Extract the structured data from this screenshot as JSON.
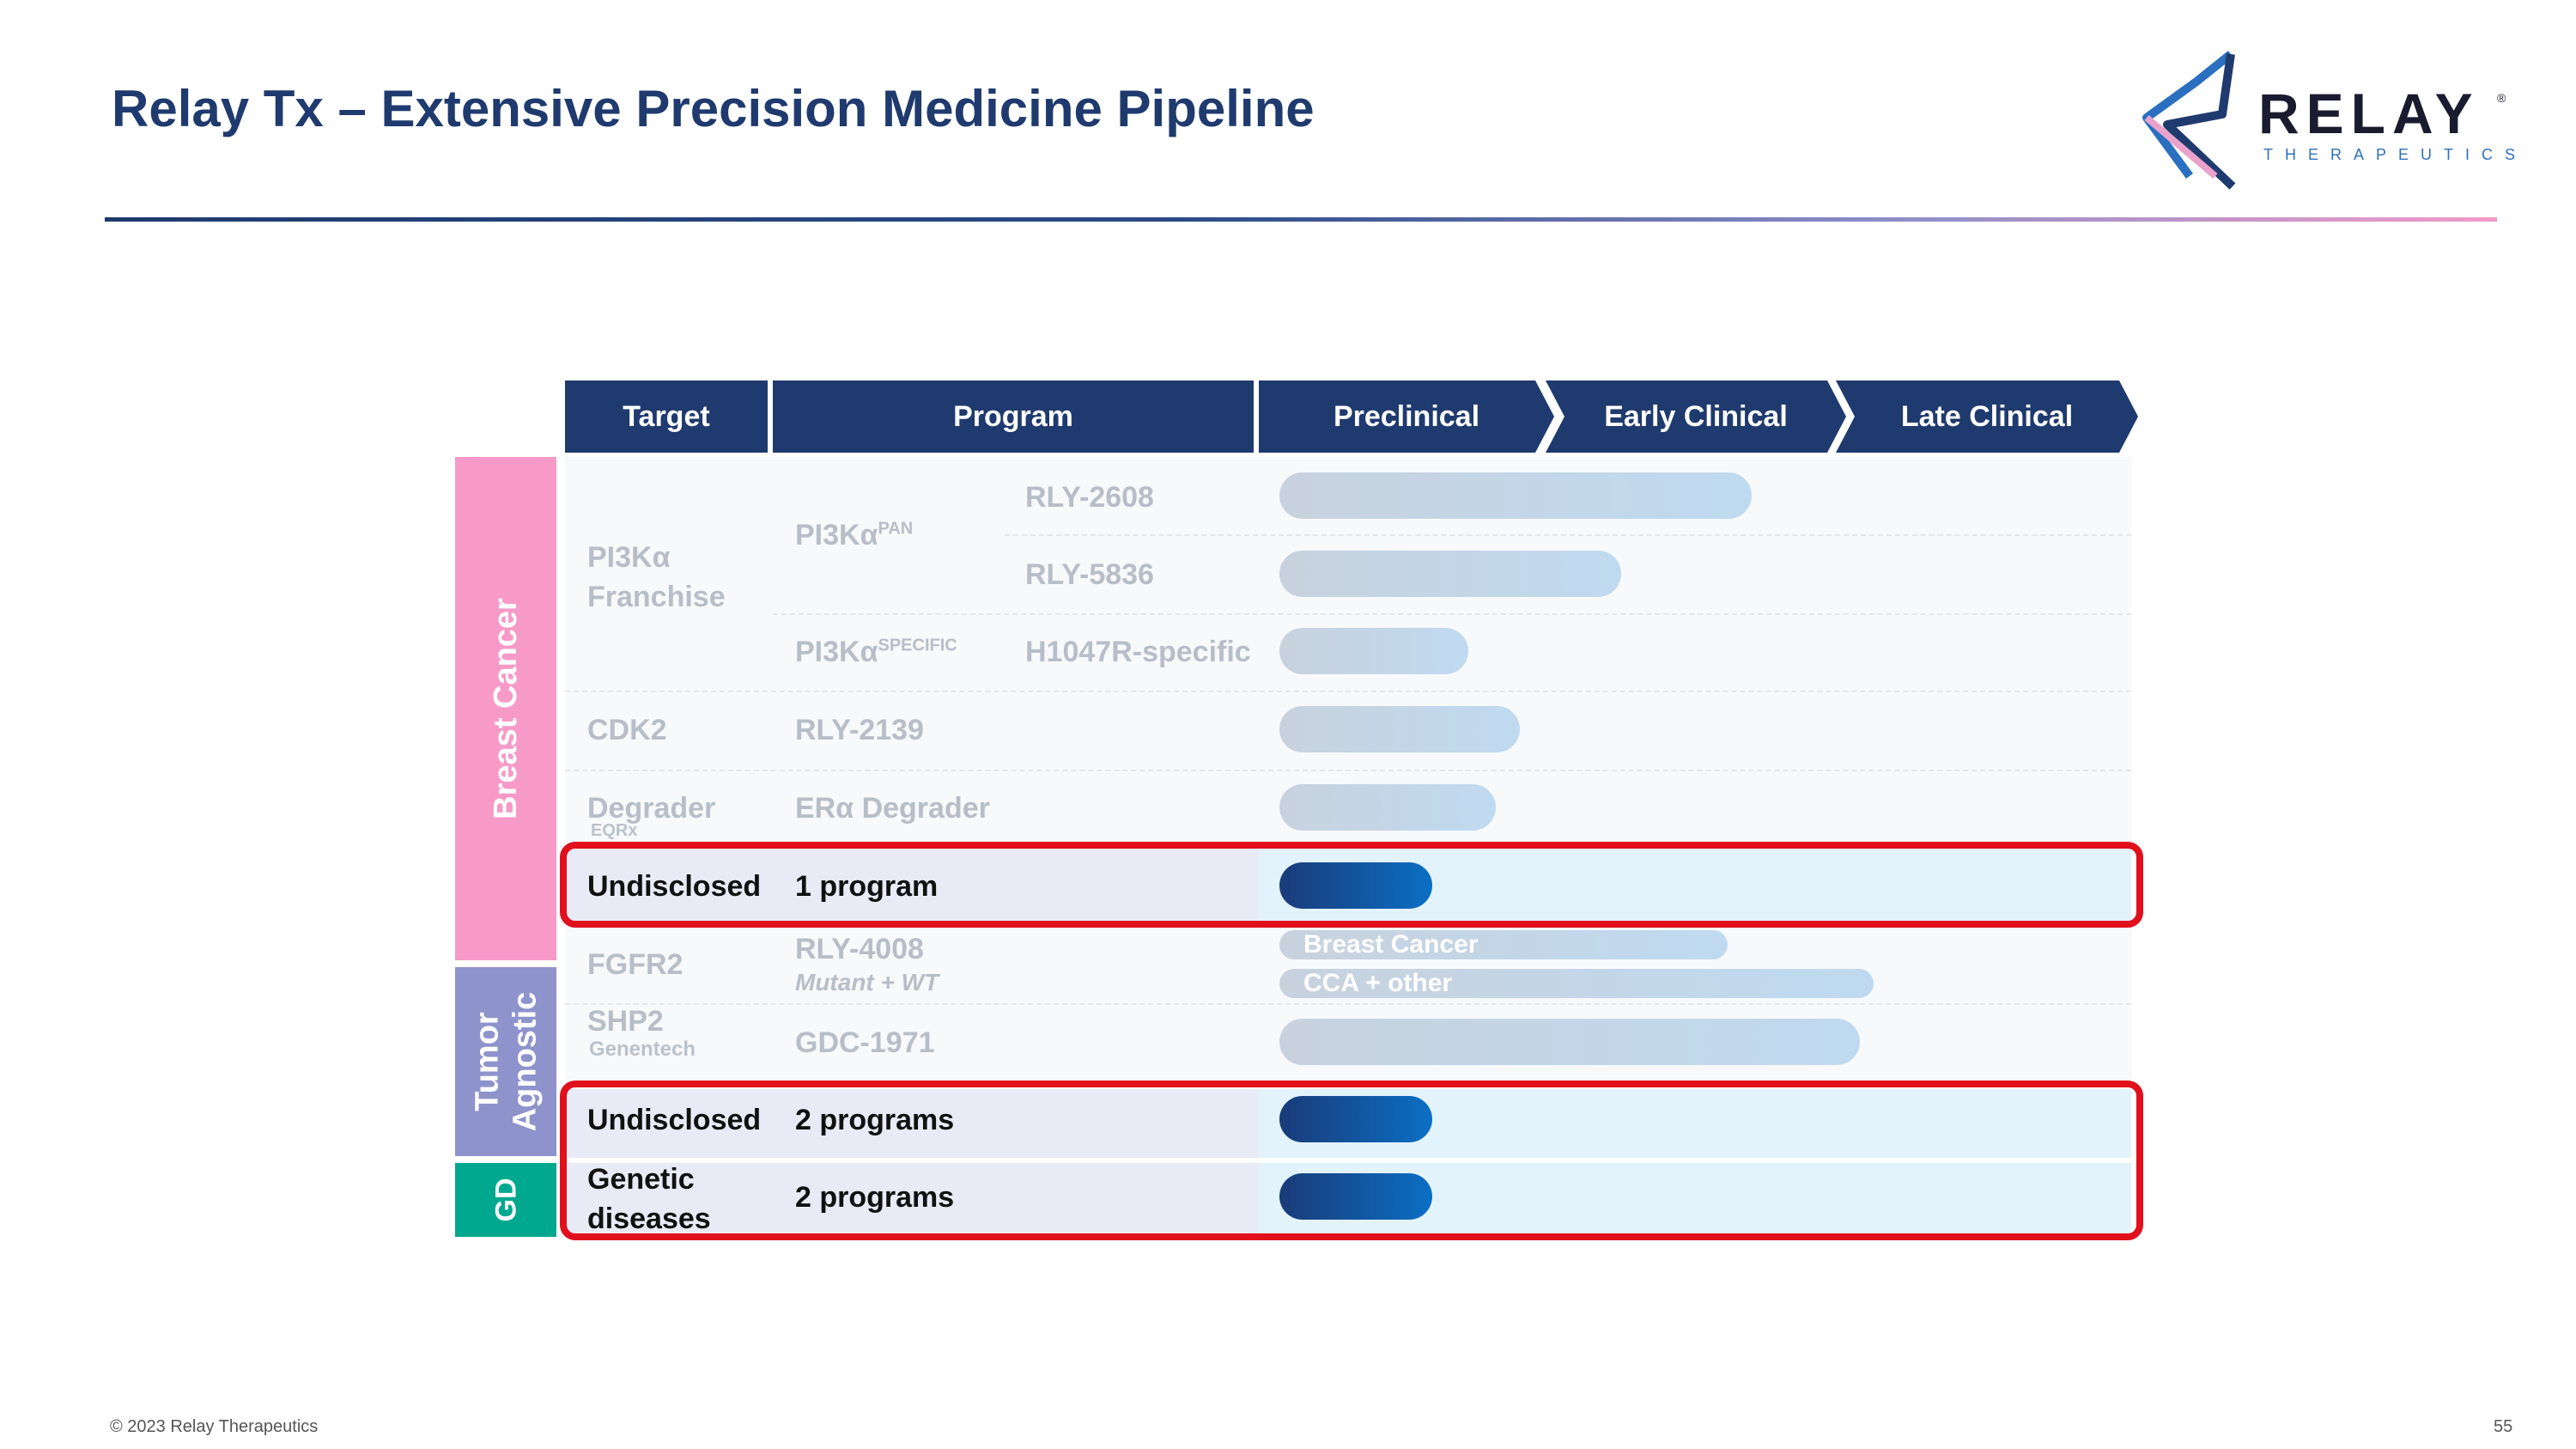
{
  "title": "Relay Tx – Extensive Precision Medicine Pipeline",
  "logo": {
    "name": "RELAY",
    "registered": "®",
    "tagline": "THERAPEUTICS"
  },
  "headers": [
    "Target",
    "Program",
    "Preclinical",
    "Early Clinical",
    "Late Clinical"
  ],
  "side_labels": {
    "breast_cancer": "Breast Cancer",
    "tumor_agnostic_line1": "Tumor",
    "tumor_agnostic_line2": "Agnostic",
    "gd": "GD"
  },
  "colors": {
    "header_navy": "#1f3a6e",
    "breast_cancer": "#f79ac8",
    "tumor_agnostic": "#8e93cc",
    "gd": "#00a88f",
    "highlight_red": "#e0101c",
    "dark_bar_start": "#1a3b79",
    "dark_bar_end": "#0b6fc4"
  },
  "rows": {
    "pi3k_target_line1": "PI3Kα",
    "pi3k_target_line2": "Franchise",
    "pi3k_pan_label": "PI3Kα",
    "pi3k_pan_sup": "PAN",
    "pi3k_specific_label": "PI3Kα",
    "pi3k_specific_sup": "SPECIFIC",
    "rly2608": "RLY-2608",
    "rly5836": "RLY-5836",
    "h1047r": "H1047R-specific",
    "cdk2_target": "CDK2",
    "cdk2_program": "RLY-2139",
    "degrader_target": "Degrader",
    "degrader_partner": "EQRx",
    "degrader_program": "ERα Degrader",
    "undisclosed_bc_target": "Undisclosed",
    "undisclosed_bc_program": "1 program",
    "fgfr2_target": "FGFR2",
    "fgfr2_program": "RLY-4008",
    "fgfr2_note": "Mutant + WT",
    "fgfr2_bar1": "Breast Cancer",
    "fgfr2_bar2": "CCA + other",
    "shp2_target": "SHP2",
    "shp2_partner": "Genentech",
    "shp2_program": "GDC-1971",
    "undisclosed_ta_target": "Undisclosed",
    "undisclosed_ta_program": "2 programs",
    "gd_target_line1": "Genetic",
    "gd_target_line2": "diseases",
    "gd_program": "2 programs"
  },
  "footer": {
    "copyright": "© 2023 Relay Therapeutics",
    "page": "55"
  }
}
